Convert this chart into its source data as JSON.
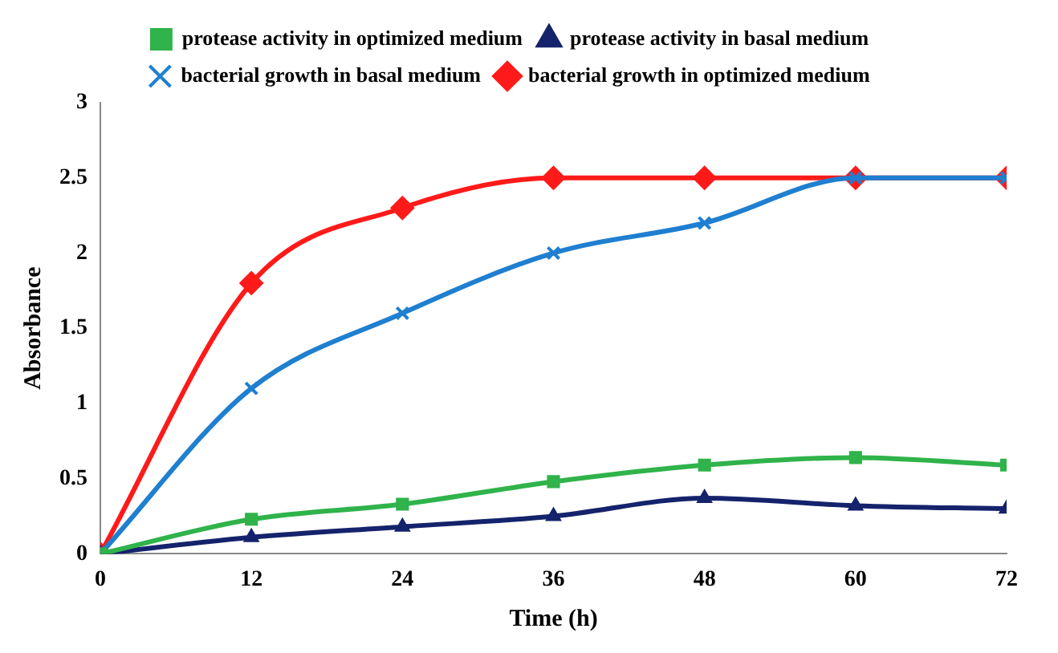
{
  "chart_data": {
    "type": "line",
    "xlabel": "Time (h)",
    "ylabel": "Absorbance",
    "x": [
      0,
      12,
      24,
      36,
      48,
      60,
      72
    ],
    "xlim": [
      0,
      72
    ],
    "xticks": [
      0,
      12,
      24,
      36,
      48,
      60,
      72
    ],
    "ylim": [
      0,
      3
    ],
    "yticks": [
      0,
      0.5,
      1,
      1.5,
      2,
      2.5,
      3
    ],
    "grid": false,
    "legend": "top",
    "series": [
      {
        "name": "protease activity in optimized medium",
        "color": "#2fb34a",
        "marker": "square",
        "values": [
          0,
          0.23,
          0.33,
          0.48,
          0.59,
          0.64,
          0.59
        ]
      },
      {
        "name": "protease activity in basal medium",
        "color": "#14236b",
        "marker": "triangle",
        "values": [
          0,
          0.11,
          0.18,
          0.25,
          0.37,
          0.32,
          0.3
        ]
      },
      {
        "name": "bacterial growth in basal medium",
        "color": "#1f7fd0",
        "marker": "cross",
        "values": [
          0,
          1.1,
          1.6,
          2.0,
          2.2,
          2.5,
          2.5
        ]
      },
      {
        "name": "bacterial growth in optimized medium",
        "color": "#ff1a1a",
        "marker": "diamond",
        "values": [
          0,
          1.8,
          2.3,
          2.5,
          2.5,
          2.5,
          2.5
        ]
      }
    ]
  }
}
